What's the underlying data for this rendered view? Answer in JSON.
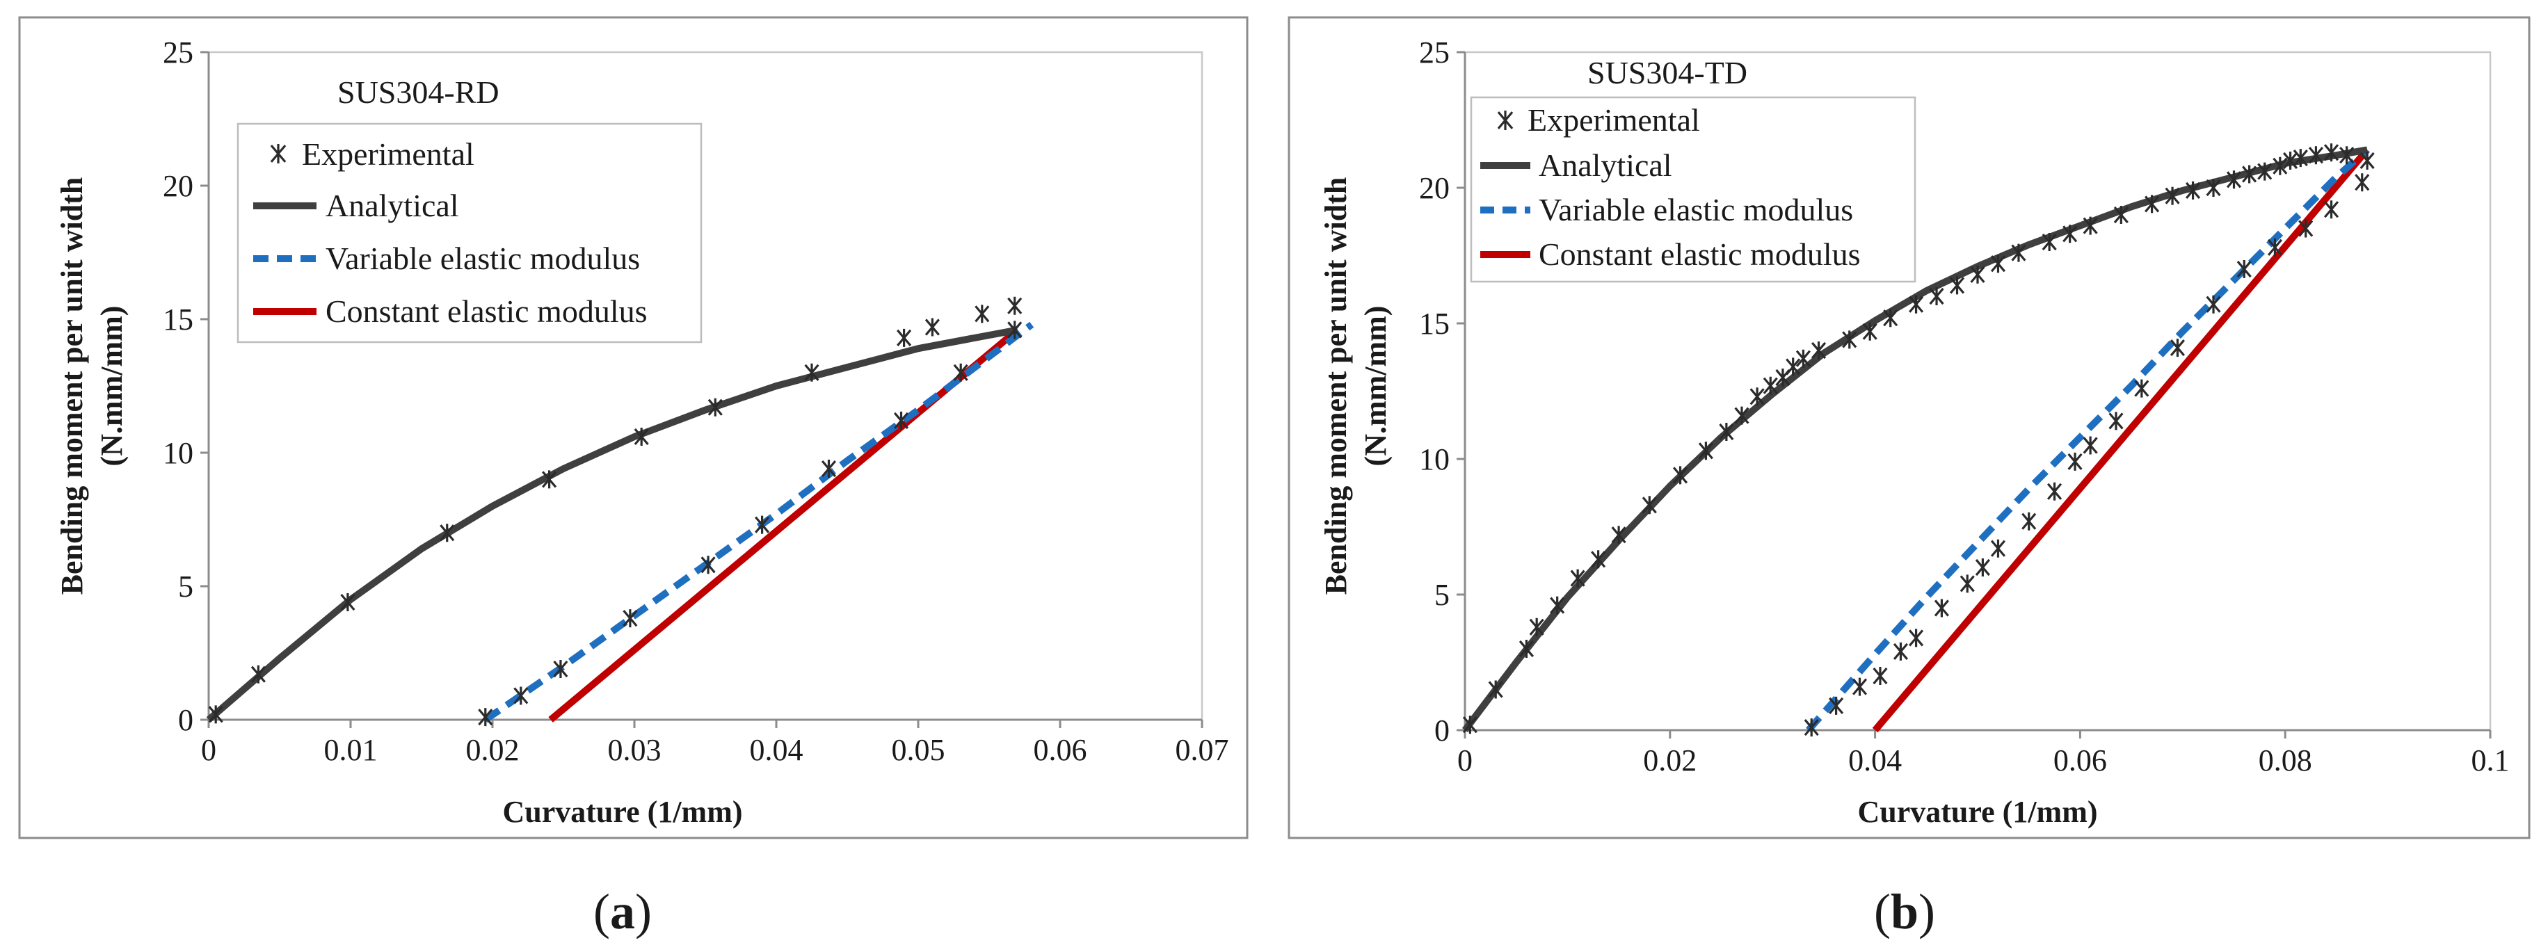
{
  "chart_data": [
    {
      "type": "line",
      "panel_label": "(a)",
      "label_parts": {
        "open": "(",
        "letter": "a",
        "close": ")"
      },
      "title": "SUS304-RD",
      "xlabel": "Curvature (1/mm)",
      "ylabel_lines": [
        "Bending moment per unit width",
        "(N.mm/mm)"
      ],
      "xlim": [
        0,
        0.07
      ],
      "ylim": [
        0,
        25
      ],
      "xticks": [
        0,
        0.01,
        0.02,
        0.03,
        0.04,
        0.05,
        0.06,
        0.07
      ],
      "yticks": [
        0,
        5,
        10,
        15,
        20,
        25
      ],
      "xtick_labels": [
        "0",
        "0.01",
        "0.02",
        "0.03",
        "0.04",
        "0.05",
        "0.06",
        "0.07"
      ],
      "ytick_labels": [
        "0",
        "5",
        "10",
        "15",
        "20",
        "25"
      ],
      "legend_position": "upper-left",
      "series": [
        {
          "name": "Experimental",
          "style": "marker",
          "color": "#2b2b2b",
          "x": [
            0.0005,
            0.0035,
            0.0098,
            0.0168,
            0.024,
            0.0305,
            0.0357,
            0.0425,
            0.049,
            0.051,
            0.0545,
            0.0568,
            0.0568,
            0.053,
            0.0488,
            0.0437,
            0.039,
            0.0352,
            0.0297,
            0.0248,
            0.022,
            0.0195
          ],
          "y": [
            0.2,
            1.7,
            4.4,
            7.0,
            9.0,
            10.6,
            11.7,
            13.0,
            14.3,
            14.7,
            15.2,
            15.5,
            14.6,
            13.0,
            11.2,
            9.4,
            7.3,
            5.8,
            3.8,
            1.9,
            0.9,
            0.1
          ]
        },
        {
          "name": "Analytical",
          "style": "solid",
          "color": "#3f3f3f",
          "x": [
            0,
            0.005,
            0.01,
            0.015,
            0.02,
            0.025,
            0.03,
            0.035,
            0.04,
            0.045,
            0.05,
            0.055,
            0.057
          ],
          "y": [
            0,
            2.3,
            4.5,
            6.4,
            8.0,
            9.4,
            10.6,
            11.6,
            12.5,
            13.2,
            13.9,
            14.4,
            14.6
          ]
        },
        {
          "name": "Variable elastic modulus",
          "style": "dashed",
          "color": "#1f6fc1",
          "x": [
            0.0195,
            0.025,
            0.03,
            0.035,
            0.04,
            0.045,
            0.05,
            0.055,
            0.058
          ],
          "y": [
            0,
            2.0,
            3.9,
            5.8,
            7.7,
            9.7,
            11.6,
            13.6,
            14.8
          ]
        },
        {
          "name": "Constant elastic modulus",
          "style": "solid",
          "color": "#c00000",
          "x": [
            0.0241,
            0.057
          ],
          "y": [
            0,
            14.6
          ]
        }
      ]
    },
    {
      "type": "line",
      "panel_label": "(b)",
      "label_parts": {
        "open": "(",
        "letter": "b",
        "close": ")"
      },
      "title": "SUS304-TD",
      "xlabel": "Curvature (1/mm)",
      "ylabel_lines": [
        "Bending moment per unit width",
        "(N.mm/mm)"
      ],
      "xlim": [
        0,
        0.1
      ],
      "ylim": [
        0,
        25
      ],
      "xticks": [
        0,
        0.02,
        0.04,
        0.06,
        0.08,
        0.1
      ],
      "yticks": [
        0,
        5,
        10,
        15,
        20,
        25
      ],
      "xtick_labels": [
        "0",
        "0.02",
        "0.04",
        "0.06",
        "0.08",
        "0.1"
      ],
      "ytick_labels": [
        "0",
        "5",
        "10",
        "15",
        "20",
        "25"
      ],
      "legend_position": "upper-left",
      "series": [
        {
          "name": "Experimental",
          "style": "marker",
          "color": "#2b2b2b",
          "x": [
            0.0005,
            0.003,
            0.006,
            0.007,
            0.009,
            0.011,
            0.013,
            0.015,
            0.018,
            0.021,
            0.0235,
            0.0255,
            0.027,
            0.0285,
            0.0298,
            0.031,
            0.032,
            0.033,
            0.0345,
            0.0375,
            0.0395,
            0.0415,
            0.044,
            0.046,
            0.048,
            0.05,
            0.052,
            0.054,
            0.057,
            0.059,
            0.061,
            0.064,
            0.067,
            0.069,
            0.071,
            0.073,
            0.075,
            0.0765,
            0.078,
            0.0795,
            0.0805,
            0.0815,
            0.083,
            0.0845,
            0.086,
            0.088,
            0.0875,
            0.0845,
            0.082,
            0.079,
            0.076,
            0.073,
            0.0695,
            0.066,
            0.0635,
            0.061,
            0.0595,
            0.0575,
            0.055,
            0.052,
            0.0505,
            0.049,
            0.0465,
            0.044,
            0.0425,
            0.0405,
            0.0385,
            0.0362,
            0.0338
          ],
          "y": [
            0.2,
            1.5,
            3.0,
            3.8,
            4.6,
            5.6,
            6.3,
            7.2,
            8.3,
            9.4,
            10.3,
            11.0,
            11.6,
            12.3,
            12.7,
            13.0,
            13.4,
            13.7,
            14.0,
            14.4,
            14.7,
            15.2,
            15.7,
            16.0,
            16.4,
            16.8,
            17.2,
            17.6,
            18.0,
            18.3,
            18.6,
            19.0,
            19.4,
            19.7,
            19.9,
            20.0,
            20.3,
            20.5,
            20.6,
            20.8,
            21.0,
            21.1,
            21.2,
            21.3,
            21.2,
            21.0,
            20.2,
            19.2,
            18.5,
            17.8,
            17.0,
            15.7,
            14.1,
            12.6,
            11.4,
            10.5,
            9.9,
            8.8,
            7.7,
            6.7,
            6.0,
            5.4,
            4.5,
            3.4,
            2.9,
            2.0,
            1.6,
            0.9,
            0.1
          ]
        },
        {
          "name": "Analytical",
          "style": "solid",
          "color": "#3f3f3f",
          "x": [
            0,
            0.005,
            0.01,
            0.015,
            0.02,
            0.025,
            0.03,
            0.035,
            0.04,
            0.045,
            0.05,
            0.055,
            0.06,
            0.065,
            0.07,
            0.075,
            0.08,
            0.085,
            0.088
          ],
          "y": [
            0,
            2.5,
            4.9,
            7.0,
            9.0,
            10.8,
            12.4,
            13.9,
            15.1,
            16.2,
            17.1,
            17.9,
            18.6,
            19.3,
            19.9,
            20.4,
            20.9,
            21.2,
            21.4
          ]
        },
        {
          "name": "Variable elastic modulus",
          "style": "dashed",
          "color": "#1f6fc1",
          "x": [
            0.0335,
            0.04,
            0.045,
            0.05,
            0.055,
            0.06,
            0.065,
            0.07,
            0.075,
            0.08,
            0.085,
            0.088
          ],
          "y": [
            0,
            2.8,
            4.9,
            6.9,
            8.9,
            10.8,
            12.7,
            14.7,
            16.6,
            18.5,
            20.4,
            21.4
          ]
        },
        {
          "name": "Constant elastic modulus",
          "style": "solid",
          "color": "#c00000",
          "x": [
            0.04,
            0.088
          ],
          "y": [
            0,
            21.4
          ]
        }
      ]
    }
  ]
}
